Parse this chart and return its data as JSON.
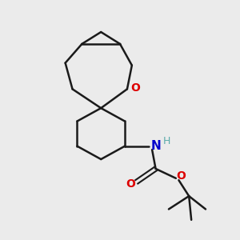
{
  "bg_color": "#ebebeb",
  "bond_color": "#1a1a1a",
  "bond_width": 1.8,
  "O_color": "#dd0000",
  "N_color": "#0000cc",
  "H_color": "#5aabab",
  "figsize": [
    3.0,
    3.0
  ],
  "dpi": 100,
  "xlim": [
    0,
    10
  ],
  "ylim": [
    0,
    10
  ]
}
